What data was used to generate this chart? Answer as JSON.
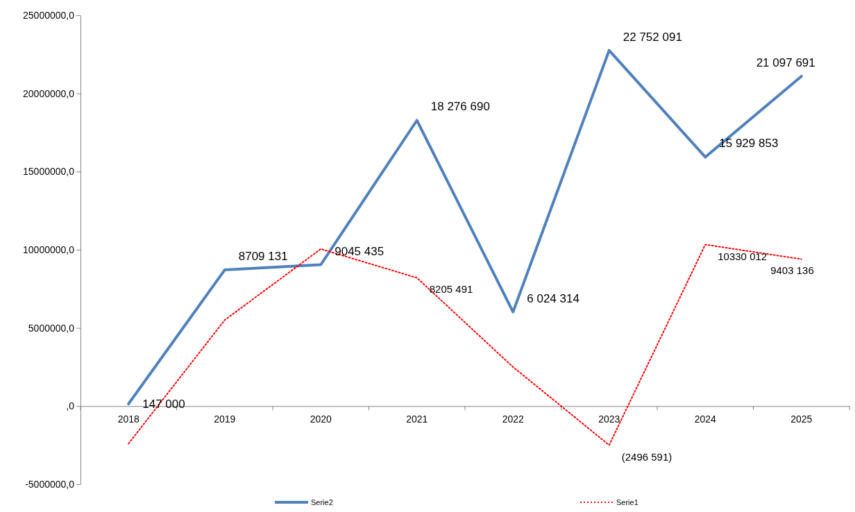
{
  "chart_data": {
    "type": "line",
    "categories": [
      "2018",
      "2019",
      "2020",
      "2021",
      "2022",
      "2023",
      "2024",
      "2025"
    ],
    "ylim": [
      -5000000,
      25000000
    ],
    "yticks": [
      {
        "value": -5000000,
        "label": "-5000000,0"
      },
      {
        "value": 0,
        "label": ",0"
      },
      {
        "value": 5000000,
        "label": "5000000,0"
      },
      {
        "value": 10000000,
        "label": "10000000,0"
      },
      {
        "value": 15000000,
        "label": "15000000,0"
      },
      {
        "value": 20000000,
        "label": "20000000,0"
      },
      {
        "value": 25000000,
        "label": "25000000,0"
      }
    ],
    "series": [
      {
        "name": "Serie2",
        "color": "#4f81bd",
        "line_style": "solid",
        "values": [
          147000,
          8709131,
          9045435,
          18276690,
          6024314,
          22752091,
          15929853,
          21097691
        ],
        "value_labels": [
          "147 000",
          "8709 131",
          "9045 435",
          "18 276 690",
          "6 024 314",
          "22 752 091",
          "15 929 853",
          "21 097 691"
        ]
      },
      {
        "name": "Serie1",
        "color": "#ff0000",
        "line_style": "dotted",
        "values": [
          -2400000,
          5500000,
          10050000,
          8205491,
          2500000,
          -2496591,
          10330012,
          9403136
        ],
        "value_labels": [
          null,
          null,
          null,
          "8205 491",
          null,
          "(2496 591)",
          "10330 012",
          "9403 136"
        ]
      }
    ],
    "legend": "bottom",
    "grid": false,
    "marker": "none"
  }
}
